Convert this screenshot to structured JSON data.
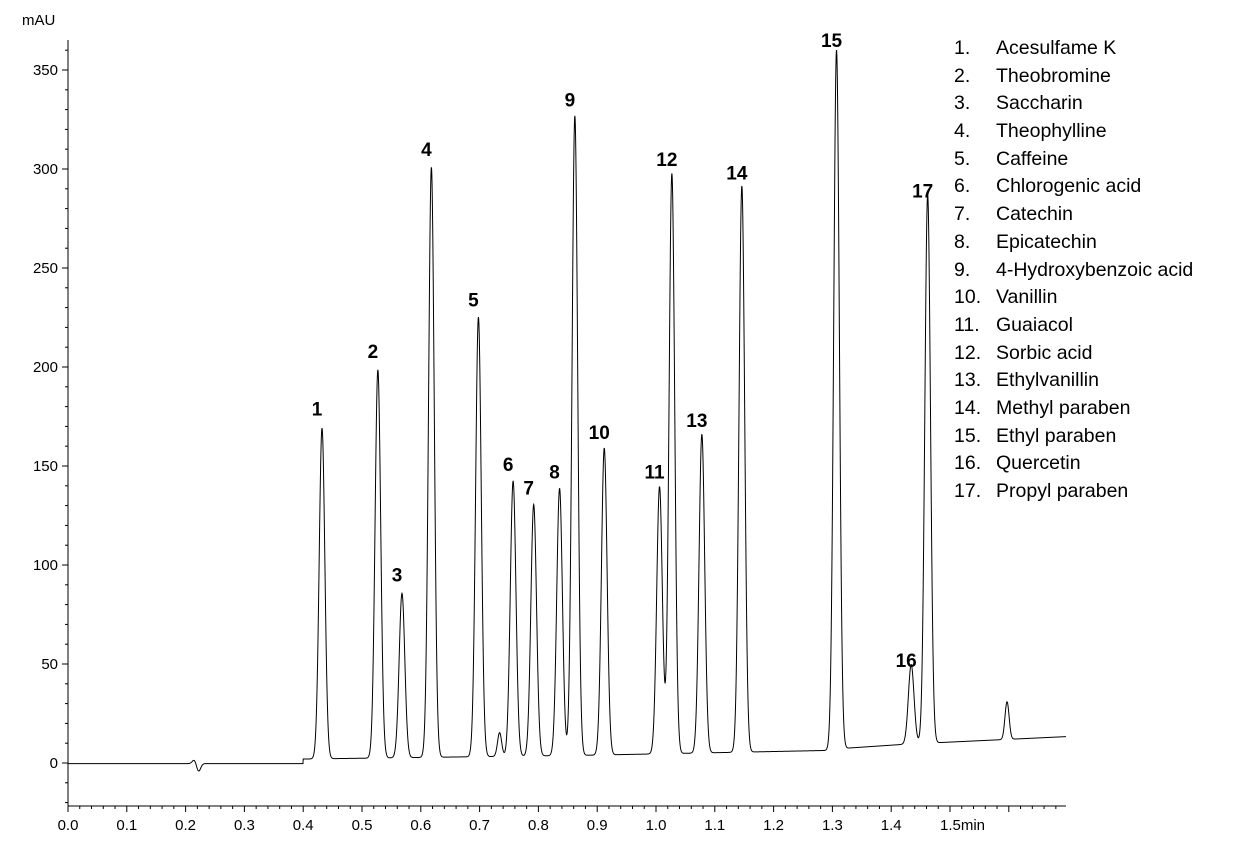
{
  "chart_data": {
    "type": "line",
    "xlabel": "min",
    "ylabel": "mAU",
    "xlim": [
      0,
      1.7
    ],
    "ylim": [
      -22,
      365
    ],
    "x_ticks": [
      0.0,
      0.1,
      0.2,
      0.3,
      0.4,
      0.5,
      0.6,
      0.7,
      0.8,
      0.9,
      1.0,
      1.1,
      1.2,
      1.3,
      1.4,
      1.5
    ],
    "x_tick_labels": [
      "0.0",
      "0.1",
      "0.2",
      "0.3",
      "0.4",
      "0.5",
      "0.6",
      "0.7",
      "0.8",
      "0.9",
      "1.0",
      "1.1",
      "1.2",
      "1.3",
      "1.4",
      "1.5"
    ],
    "y_ticks": [
      0,
      50,
      100,
      150,
      200,
      250,
      300,
      350
    ],
    "y_tick_labels": [
      "0",
      "50",
      "100",
      "150",
      "200",
      "250",
      "300",
      "350"
    ],
    "grid": false,
    "legend_position": "top-right",
    "peaks": [
      {
        "label": "1",
        "time": 0.432,
        "height": 167
      },
      {
        "label": "2",
        "time": 0.527,
        "height": 196
      },
      {
        "label": "3",
        "time": 0.568,
        "height": 83
      },
      {
        "label": "4",
        "time": 0.618,
        "height": 298
      },
      {
        "label": "5",
        "time": 0.698,
        "height": 222
      },
      {
        "label": "6",
        "time": 0.757,
        "height": 139
      },
      {
        "label": "7",
        "time": 0.792,
        "height": 127
      },
      {
        "label": "8",
        "time": 0.836,
        "height": 135
      },
      {
        "label": "9",
        "time": 0.862,
        "height": 323
      },
      {
        "label": "10",
        "time": 0.912,
        "height": 155
      },
      {
        "label": "11",
        "time": 1.006,
        "height": 135
      },
      {
        "label": "12",
        "time": 1.027,
        "height": 293
      },
      {
        "label": "13",
        "time": 1.078,
        "height": 161
      },
      {
        "label": "14",
        "time": 1.146,
        "height": 286
      },
      {
        "label": "15",
        "time": 1.307,
        "height": 353
      },
      {
        "label": "16",
        "time": 1.434,
        "height": 40
      },
      {
        "label": "17",
        "time": 1.462,
        "height": 277
      }
    ],
    "minor_features": [
      {
        "time": 0.215,
        "height": 2
      },
      {
        "time": 0.222,
        "height": -4
      },
      {
        "time": 0.734,
        "height": 12
      },
      {
        "time": 1.597,
        "height": 19
      }
    ],
    "legend": [
      {
        "num": "1.",
        "name": "Acesulfame K"
      },
      {
        "num": "2.",
        "name": "Theobromine"
      },
      {
        "num": "3.",
        "name": "Saccharin"
      },
      {
        "num": "4.",
        "name": "Theophylline"
      },
      {
        "num": "5.",
        "name": "Caffeine"
      },
      {
        "num": "6.",
        "name": "Chlorogenic acid"
      },
      {
        "num": "7.",
        "name": "Catechin"
      },
      {
        "num": "8.",
        "name": "Epicatechin"
      },
      {
        "num": "9.",
        "name": "4-Hydroxybenzoic acid"
      },
      {
        "num": "10.",
        "name": "Vanillin"
      },
      {
        "num": "11.",
        "name": "Guaiacol"
      },
      {
        "num": "12.",
        "name": "Sorbic acid"
      },
      {
        "num": "13.",
        "name": "Ethylvanillin"
      },
      {
        "num": "14.",
        "name": "Methyl paraben"
      },
      {
        "num": "15.",
        "name": "Ethyl paraben"
      },
      {
        "num": "16.",
        "name": "Quercetin"
      },
      {
        "num": "17.",
        "name": "Propyl paraben"
      }
    ]
  }
}
